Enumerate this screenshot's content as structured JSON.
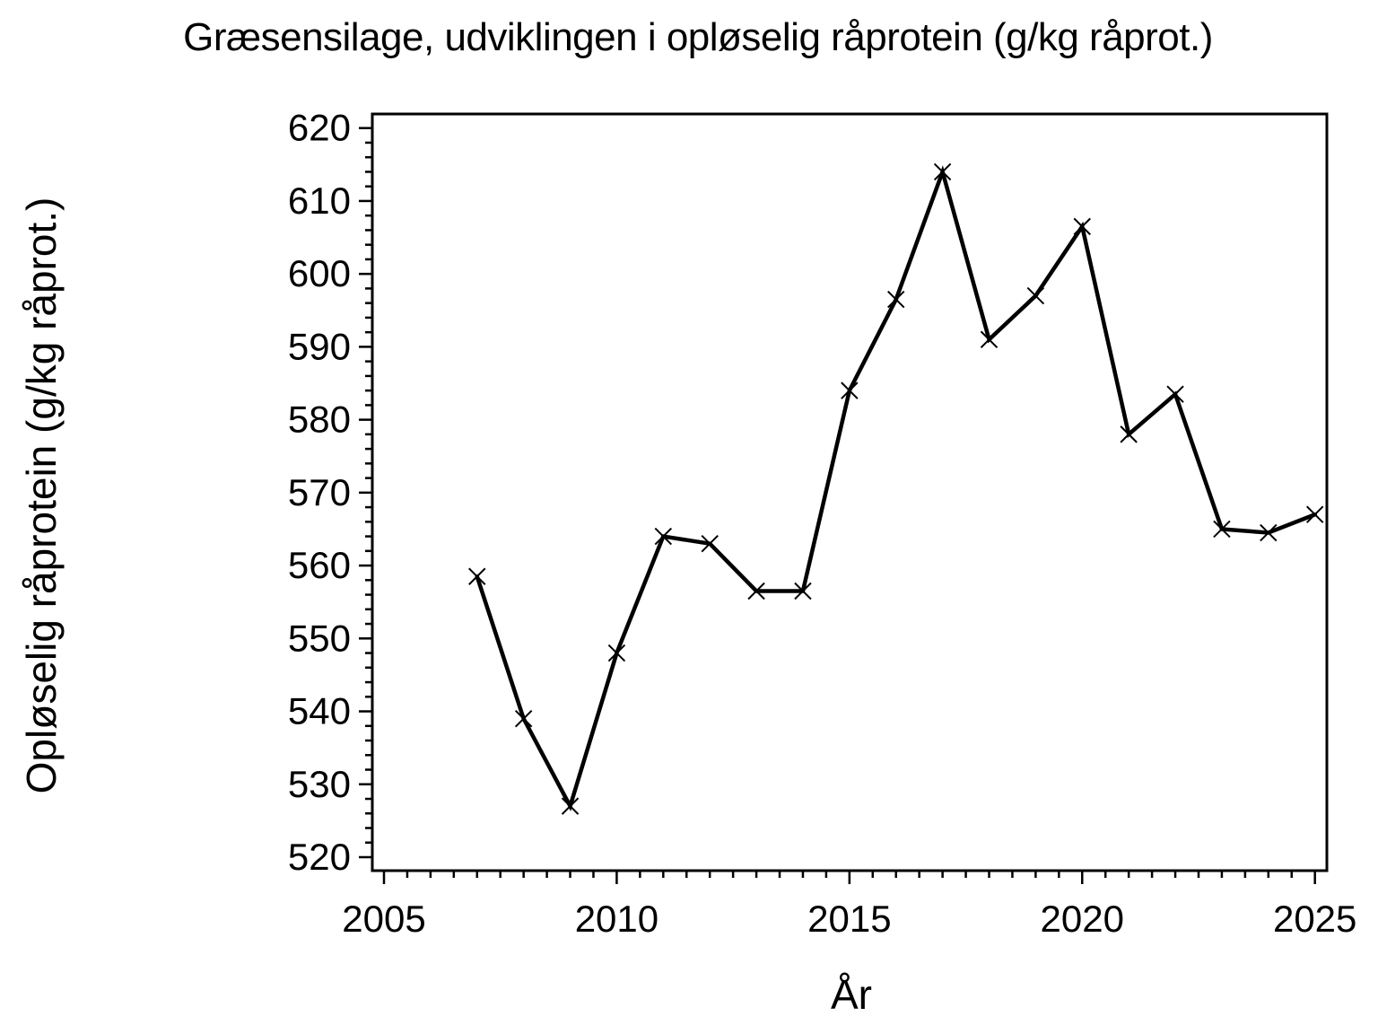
{
  "page": {
    "background_color": "#ffffff",
    "foreground_color": "#000000"
  },
  "chart_data": {
    "type": "line",
    "title": "Græsensilage, udviklingen i opløselig råprotein (g/kg råprot.)",
    "xlabel": "År",
    "ylabel": "Opløselig råprotein (g/kg råprot.)",
    "x": [
      2007,
      2008,
      2009,
      2010,
      2011,
      2012,
      2013,
      2014,
      2015,
      2016,
      2017,
      2018,
      2019,
      2020,
      2021,
      2022,
      2023,
      2024,
      2025
    ],
    "series": [
      {
        "name": "Opløselig råprotein",
        "values": [
          558.5,
          539,
          527,
          548,
          564,
          563,
          556.5,
          556.5,
          584,
          596.5,
          614,
          591,
          597,
          606.5,
          578,
          583.5,
          565,
          564.5,
          567
        ]
      }
    ],
    "xlim": [
      2004.75,
      2025.25
    ],
    "ylim": [
      518,
      622
    ],
    "x_ticks": {
      "major": [
        2005,
        2010,
        2015,
        2020,
        2025
      ],
      "major_labels": [
        "2005",
        "2010",
        "2015",
        "2020",
        "2025"
      ],
      "minor_step": 0.5
    },
    "y_ticks": {
      "major": [
        520,
        530,
        540,
        550,
        560,
        570,
        580,
        590,
        600,
        610,
        620
      ],
      "major_labels": [
        "520",
        "530",
        "540",
        "550",
        "560",
        "570",
        "580",
        "590",
        "600",
        "610",
        "620"
      ],
      "minor_step": 2
    },
    "grid": false,
    "legend": null,
    "marker": "x",
    "line_color": "#000000",
    "marker_color": "#000000",
    "axis_color": "#000000"
  }
}
